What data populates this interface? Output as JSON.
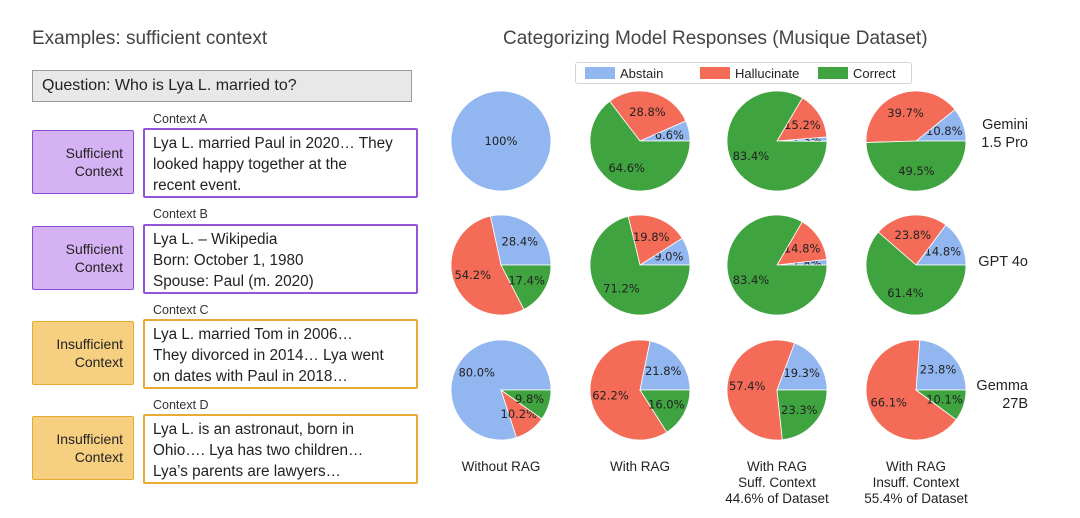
{
  "left_title": "Examples: sufficient context",
  "question": "Question: Who is Lya L. married to?",
  "contexts": [
    {
      "label": "Context A",
      "tag": "Sufficient\nContext",
      "kind": "suff",
      "text": "Lya L. married Paul in 2020… They\nlooked happy together at the\nrecent event."
    },
    {
      "label": "Context B",
      "tag": "Sufficient\nContext",
      "kind": "suff",
      "text": "Lya L. – Wikipedia\nBorn: October 1, 1980\nSpouse: Paul (m. 2020)"
    },
    {
      "label": "Context C",
      "tag": "Insufficient\nContext",
      "kind": "insuff",
      "text": "Lya L. married Tom in 2006…\nThey divorced in 2014… Lya went\non dates with Paul in 2018…"
    },
    {
      "label": "Context D",
      "tag": "Insufficient\nContext",
      "kind": "insuff",
      "text": "Lya L. is an astronaut, born in\nOhio…. Lya has two children…\nLya’s parents are lawyers…"
    }
  ],
  "chart_data": {
    "type": "pie",
    "title": "Categorizing Model Responses (Musique Dataset)",
    "legend": [
      "Abstain",
      "Hallucinate",
      "Correct"
    ],
    "legend_placement": "top-center",
    "colors": {
      "Abstain": "#92b7f0",
      "Hallucinate": "#f46b57",
      "Correct": "#3fa33f"
    },
    "columns": [
      "Without RAG",
      "With RAG",
      "With RAG\nSuff. Context\n44.6% of Dataset",
      "With RAG\nInsuff. Context\n55.4% of Dataset"
    ],
    "models": [
      "Gemini\n1.5 Pro",
      "GPT 4o",
      "Gemma\n27B"
    ],
    "pies": [
      [
        {
          "abstain": 100,
          "hallucinate": 0,
          "correct": 0,
          "labels": [
            "100%"
          ]
        },
        {
          "abstain": 6.6,
          "hallucinate": 28.8,
          "correct": 64.6,
          "labels": [
            "6.6%",
            "28.8%",
            "64.6%"
          ]
        },
        {
          "abstain": 1.3,
          "hallucinate": 15.2,
          "correct": 83.4,
          "labels": [
            "1.3%",
            "15.2%",
            "83.4%"
          ]
        },
        {
          "abstain": 10.8,
          "hallucinate": 39.7,
          "correct": 49.5,
          "labels": [
            "10.8%",
            "39.7%",
            "49.5%"
          ]
        }
      ],
      [
        {
          "abstain": 28.4,
          "hallucinate": 54.2,
          "correct": 17.4,
          "labels": [
            "28.4%",
            "54.2%",
            "17.4%"
          ]
        },
        {
          "abstain": 9.0,
          "hallucinate": 19.8,
          "correct": 71.2,
          "labels": [
            "9.0%",
            "19.8%",
            "71.2%"
          ]
        },
        {
          "abstain": 1.8,
          "hallucinate": 14.8,
          "correct": 83.4,
          "labels": [
            "1.8%",
            "14.8%",
            "83.4%"
          ]
        },
        {
          "abstain": 14.8,
          "hallucinate": 23.8,
          "correct": 61.4,
          "labels": [
            "14.8%",
            "23.8%",
            "61.4%"
          ]
        }
      ],
      [
        {
          "abstain": 80.0,
          "hallucinate": 10.2,
          "correct": 9.8,
          "labels": [
            "80.0%",
            "10.2%",
            "9.8%"
          ]
        },
        {
          "abstain": 21.8,
          "hallucinate": 62.2,
          "correct": 16.0,
          "labels": [
            "21.8%",
            "62.2%",
            "16.0%"
          ]
        },
        {
          "abstain": 19.3,
          "hallucinate": 57.4,
          "correct": 23.3,
          "labels": [
            "19.3%",
            "57.4%",
            "23.3%"
          ]
        },
        {
          "abstain": 23.8,
          "hallucinate": 66.1,
          "correct": 10.1,
          "labels": [
            "23.8%",
            "66.1%",
            "10.1%"
          ]
        }
      ]
    ]
  }
}
